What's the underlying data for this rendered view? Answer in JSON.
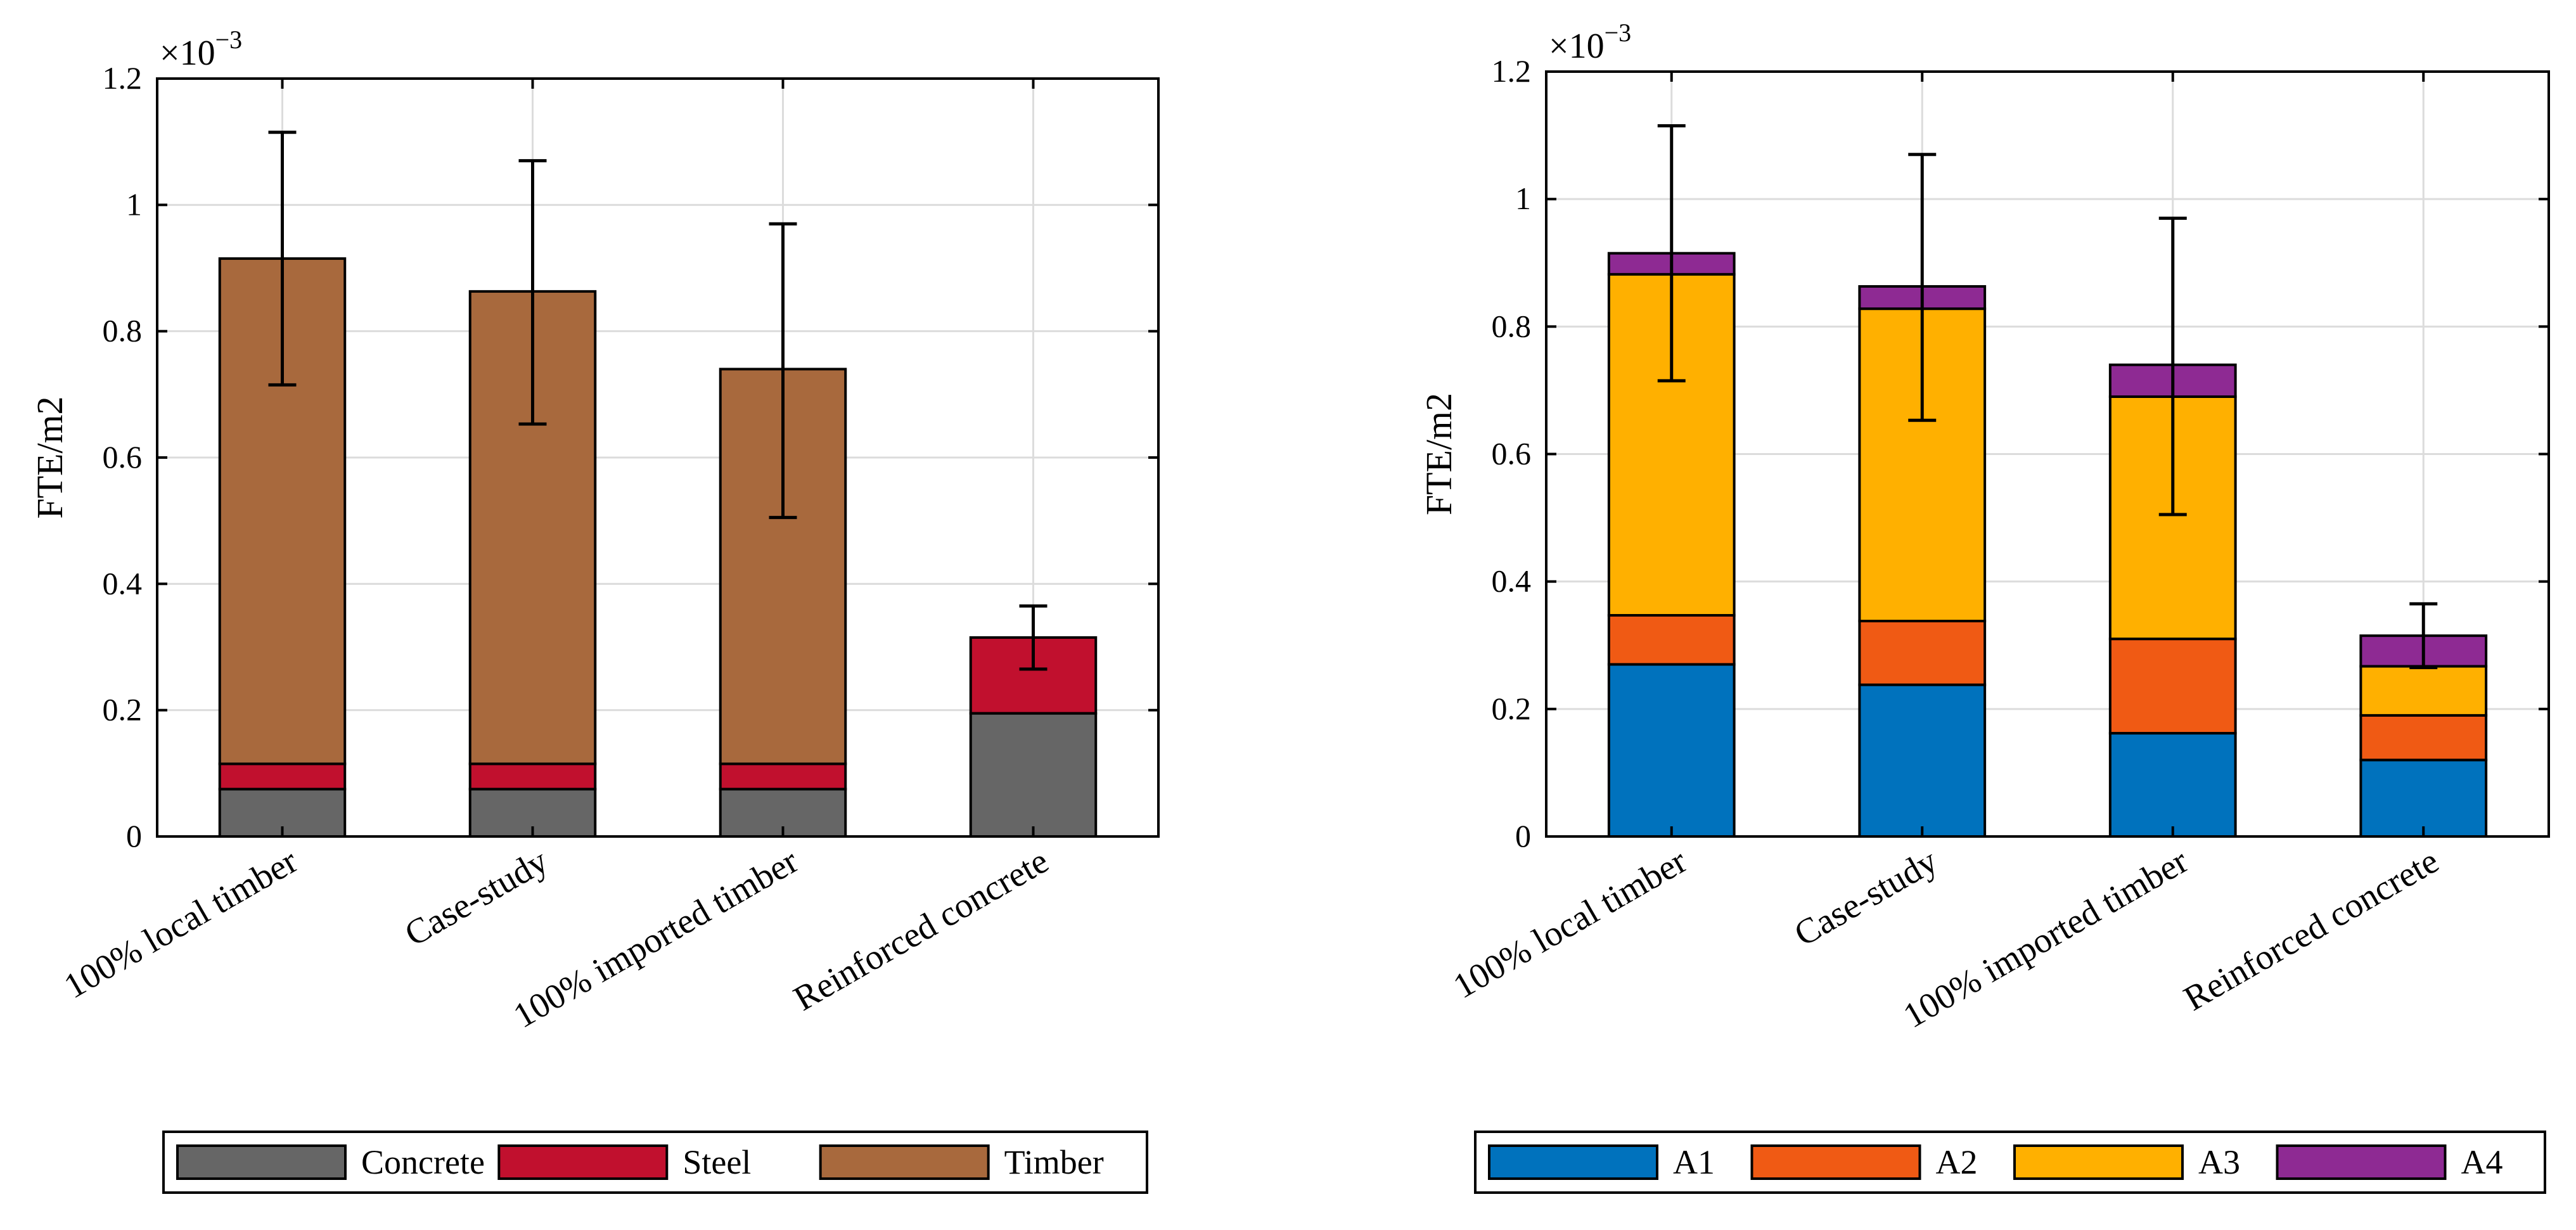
{
  "chart_data": [
    {
      "type": "bar",
      "stacked": true,
      "ylabel": "FTE/m2",
      "ylim": [
        0,
        0.0012
      ],
      "yticks": [
        0,
        0.0002,
        0.0004,
        0.0006,
        0.0008,
        0.001,
        0.0012
      ],
      "ytick_labels": [
        "0",
        "0.2",
        "0.4",
        "0.6",
        "0.8",
        "1",
        "1.2"
      ],
      "scale_factor_label": {
        "base": "×10",
        "exponent": "−3"
      },
      "grid": true,
      "legend_position": "bottom",
      "categories": [
        "100% local timber",
        "Case-study",
        "100% imported timber",
        "Reinforced concrete"
      ],
      "series": [
        {
          "name": "Concrete",
          "color": "#666666",
          "values": [
            7.5e-05,
            7.5e-05,
            7.5e-05,
            0.000195
          ]
        },
        {
          "name": "Steel",
          "color": "#C1102E",
          "values": [
            4e-05,
            4e-05,
            4e-05,
            0.00012
          ]
        },
        {
          "name": "Timber",
          "color": "#A8693D",
          "values": [
            0.0008,
            0.000748,
            0.000625,
            0
          ]
        }
      ],
      "totals": [
        0.000915,
        0.000863,
        0.00074,
        0.000315
      ],
      "error_bars": [
        {
          "low": 0.000715,
          "high": 0.001115
        },
        {
          "low": 0.000653,
          "high": 0.00107
        },
        {
          "low": 0.000505,
          "high": 0.00097
        },
        {
          "low": 0.000265,
          "high": 0.000365
        }
      ]
    },
    {
      "type": "bar",
      "stacked": true,
      "ylabel": "FTE/m2",
      "ylim": [
        0,
        0.0012
      ],
      "yticks": [
        0,
        0.0002,
        0.0004,
        0.0006,
        0.0008,
        0.001,
        0.0012
      ],
      "ytick_labels": [
        "0",
        "0.2",
        "0.4",
        "0.6",
        "0.8",
        "1",
        "1.2"
      ],
      "scale_factor_label": {
        "base": "×10",
        "exponent": "−3"
      },
      "grid": true,
      "legend_position": "bottom",
      "categories": [
        "100% local timber",
        "Case-study",
        "100% imported timber",
        "Reinforced concrete"
      ],
      "series": [
        {
          "name": "A1",
          "color": "#0072BD",
          "values": [
            0.00027,
            0.000238,
            0.000162,
            0.00012
          ]
        },
        {
          "name": "A2",
          "color": "#F05A14",
          "values": [
            7.7e-05,
            0.0001,
            0.000148,
            7e-05
          ]
        },
        {
          "name": "A3",
          "color": "#FFB000",
          "values": [
            0.000535,
            0.00049,
            0.00038,
            7.7e-05
          ]
        },
        {
          "name": "A4",
          "color": "#8E2A93",
          "values": [
            3.3e-05,
            3.5e-05,
            5e-05,
            4.8e-05
          ]
        }
      ],
      "totals": [
        0.000915,
        0.000863,
        0.00074,
        0.000315
      ],
      "error_bars": [
        {
          "low": 0.000715,
          "high": 0.001115
        },
        {
          "low": 0.000653,
          "high": 0.00107
        },
        {
          "low": 0.000505,
          "high": 0.00097
        },
        {
          "low": 0.000265,
          "high": 0.000365
        }
      ]
    }
  ]
}
